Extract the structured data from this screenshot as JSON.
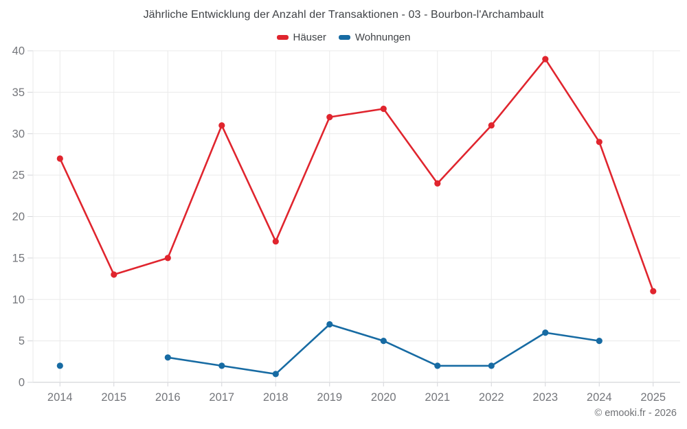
{
  "page": {
    "footer": "© emooki.fr - 2026"
  },
  "chart_data": {
    "type": "line",
    "title": "Jährliche Entwicklung der Anzahl der Transaktionen - 03 - Bourbon-l'Archambault",
    "categories": [
      "2014",
      "2015",
      "2016",
      "2017",
      "2018",
      "2019",
      "2020",
      "2021",
      "2022",
      "2023",
      "2024",
      "2025"
    ],
    "series": [
      {
        "name": "Häuser",
        "color": "#e0252e",
        "values": [
          27,
          13,
          15,
          31,
          17,
          32,
          33,
          24,
          31,
          39,
          29,
          11
        ]
      },
      {
        "name": "Wohnungen",
        "color": "#176ba3",
        "values": [
          2,
          null,
          3,
          2,
          1,
          7,
          5,
          2,
          2,
          6,
          5,
          null
        ]
      }
    ],
    "ylim": [
      0,
      40
    ],
    "ytick_step": 5,
    "xlabel": "",
    "ylabel": "",
    "grid": true,
    "legend_position": "top",
    "marker": "circle",
    "colors": {
      "grid": "#eaeaea",
      "axis_line": "#c9cbcf",
      "tick": "#d2d4d8",
      "axis_text": "#74767b",
      "title_text": "#3f4246",
      "footer_text": "#6f7175",
      "background": "#ffffff"
    }
  }
}
